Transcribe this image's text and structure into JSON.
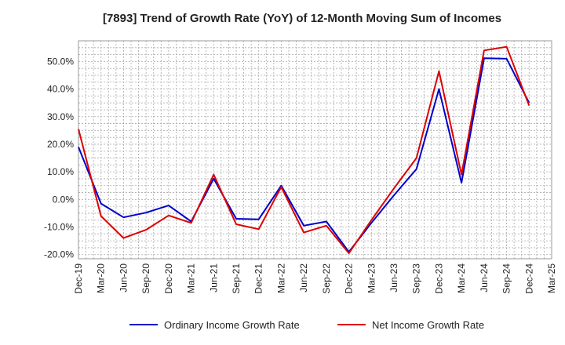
{
  "chart_data": {
    "type": "line",
    "title": "[7893]  Trend of Growth Rate (YoY) of 12-Month Moving Sum of Incomes",
    "xlabel": "",
    "ylabel": "",
    "x": [
      "Dec-19",
      "Mar-20",
      "Jun-20",
      "Sep-20",
      "Dec-20",
      "Mar-21",
      "Jun-21",
      "Sep-21",
      "Dec-21",
      "Mar-22",
      "Jun-22",
      "Sep-22",
      "Dec-22",
      "Mar-23",
      "Jun-23",
      "Sep-23",
      "Dec-23",
      "Mar-24",
      "Jun-24",
      "Sep-24",
      "Dec-24",
      "Mar-25"
    ],
    "y_ticks": [
      "50.0%",
      "40.0%",
      "30.0%",
      "20.0%",
      "10.0%",
      "0.0%",
      "-10.0%",
      "-20.0%"
    ],
    "ylim": [
      -21.5,
      57.5
    ],
    "grid": true,
    "legend_position": "bottom",
    "series": [
      {
        "name": "Ordinary Income Growth Rate",
        "color": "#0000cc",
        "values": [
          19.0,
          -1.5,
          -6.5,
          -4.8,
          -2.2,
          -8.0,
          7.5,
          -7.0,
          -7.2,
          5.0,
          -9.5,
          -8.0,
          -19.0,
          -8.5,
          1.5,
          11.0,
          40.0,
          6.0,
          51.2,
          51.0,
          35.0,
          null
        ]
      },
      {
        "name": "Net Income Growth Rate",
        "color": "#dd0000",
        "values": [
          25.5,
          -6.0,
          -14.0,
          -11.0,
          -5.8,
          -8.5,
          9.0,
          -9.0,
          -10.8,
          4.5,
          -12.0,
          -9.5,
          -19.5,
          -7.5,
          4.0,
          15.0,
          46.5,
          9.0,
          54.0,
          55.3,
          34.0,
          null
        ]
      }
    ]
  }
}
